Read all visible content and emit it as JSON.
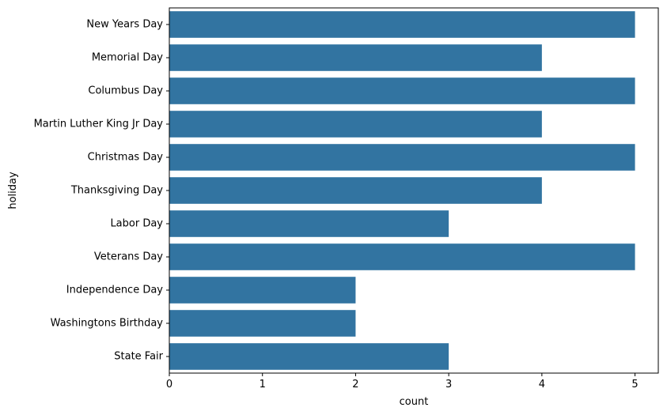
{
  "colors": {
    "bar": "#3274a1",
    "axis": "#000000",
    "background": "#ffffff"
  },
  "chart_data": {
    "type": "bar",
    "orientation": "horizontal",
    "categories": [
      "New Years Day",
      "Memorial Day",
      "Columbus Day",
      "Martin Luther King Jr Day",
      "Christmas Day",
      "Thanksgiving Day",
      "Labor Day",
      "Veterans Day",
      "Independence Day",
      "Washingtons Birthday",
      "State Fair"
    ],
    "values": [
      5,
      4,
      5,
      4,
      5,
      4,
      3,
      5,
      2,
      2,
      3
    ],
    "xlabel": "count",
    "ylabel": "holiday",
    "xlim": [
      0,
      5.25
    ],
    "xticks": [
      0,
      1,
      2,
      3,
      4,
      5
    ],
    "grid": false,
    "legend": "none"
  }
}
